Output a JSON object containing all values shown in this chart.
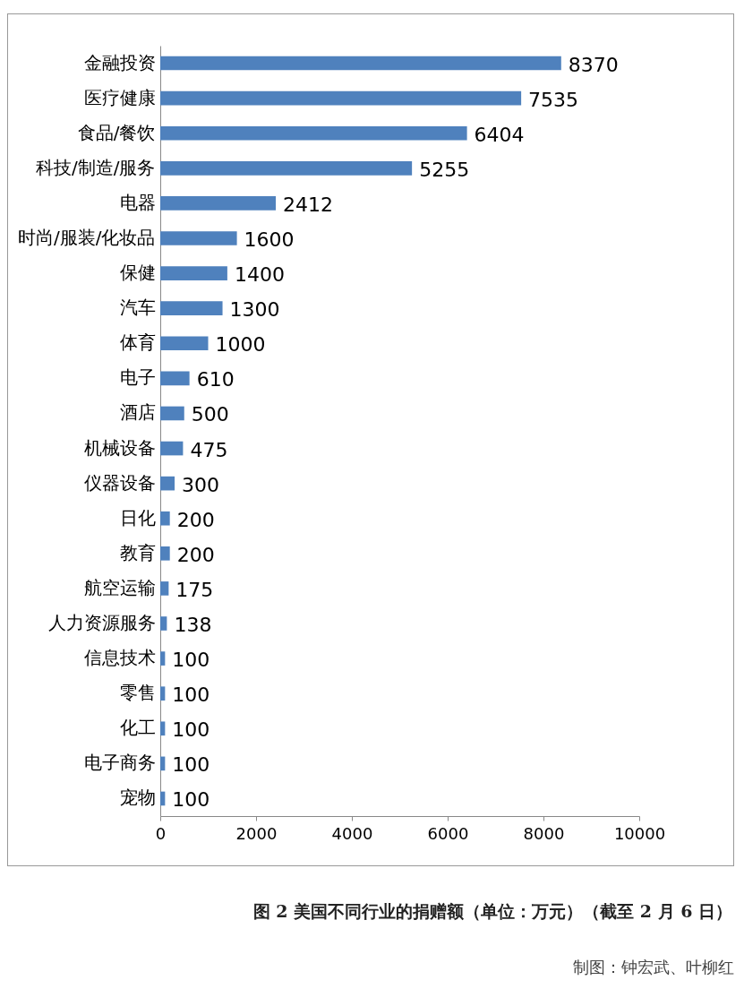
{
  "chart_data": {
    "type": "bar",
    "orientation": "horizontal",
    "title": "图 2 美国不同行业的捐赠额（单位：万元）（截至 2 月 6 日）",
    "annotations": [
      "制图：钟宏武、叶柳红"
    ],
    "categories": [
      "金融投资",
      "医疗健康",
      "食品/餐饮",
      "科技/制造/服务",
      "电器",
      "时尚/服装/化妆品",
      "保健",
      "汽车",
      "体育",
      "电子",
      "酒店",
      "机械设备",
      "仪器设备",
      "日化",
      "教育",
      "航空运输",
      "人力资源服务",
      "信息技术",
      "零售",
      "化工",
      "电子商务",
      "宠物"
    ],
    "values": [
      8370,
      7535,
      6404,
      5255,
      2412,
      1600,
      1400,
      1300,
      1000,
      610,
      500,
      475,
      300,
      200,
      200,
      175,
      138,
      100,
      100,
      100,
      100,
      100
    ],
    "color": "#4f81bd",
    "xlim": [
      0,
      10000
    ],
    "xticks": [
      0,
      2000,
      4000,
      6000,
      8000,
      10000
    ],
    "grid": false,
    "data_labels": true
  }
}
